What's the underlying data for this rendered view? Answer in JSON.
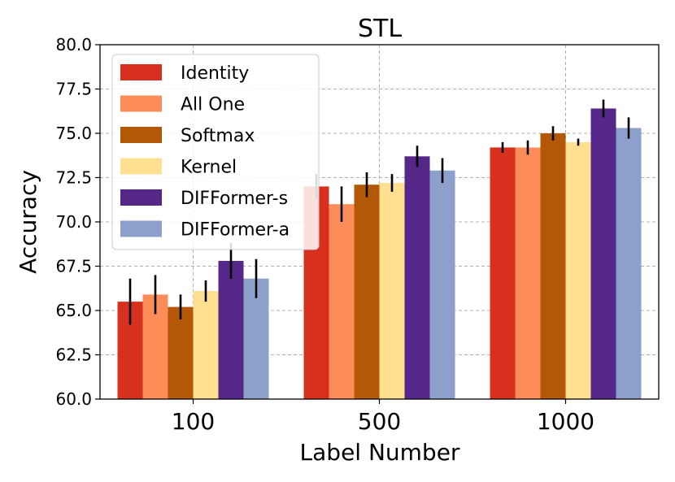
{
  "chart_data": {
    "type": "bar",
    "title": "STL",
    "xlabel": "Label Number",
    "ylabel": "Accuracy",
    "categories": [
      "100",
      "500",
      "1000"
    ],
    "ylim": [
      60.0,
      80.0
    ],
    "yticks": [
      "60.0",
      "62.5",
      "65.0",
      "67.5",
      "70.0",
      "72.5",
      "75.0",
      "77.5",
      "80.0"
    ],
    "grid": true,
    "legend_position": "top-left",
    "series": [
      {
        "name": "Identity",
        "color": "#d7301f",
        "values": [
          65.5,
          72.0,
          74.2
        ],
        "errors": [
          1.3,
          0.7,
          0.3
        ]
      },
      {
        "name": "All One",
        "color": "#fc8d59",
        "values": [
          65.9,
          71.0,
          74.2
        ],
        "errors": [
          1.1,
          1.0,
          0.4
        ]
      },
      {
        "name": "Softmax",
        "color": "#b35806",
        "values": [
          65.2,
          72.1,
          75.0
        ],
        "errors": [
          0.7,
          0.7,
          0.4
        ]
      },
      {
        "name": "Kernel",
        "color": "#fee090",
        "values": [
          66.1,
          72.2,
          74.5
        ],
        "errors": [
          0.6,
          0.5,
          0.2
        ]
      },
      {
        "name": "DIFFormer-s",
        "color": "#542788",
        "values": [
          67.8,
          73.7,
          76.4
        ],
        "errors": [
          1.0,
          0.6,
          0.5
        ]
      },
      {
        "name": "DIFFormer-a",
        "color": "#8da0cb",
        "values": [
          66.8,
          72.9,
          75.3
        ],
        "errors": [
          1.1,
          0.7,
          0.6
        ]
      }
    ],
    "legend_order": [
      "Identity",
      "All One",
      "Softmax",
      "Kernel",
      "DIFFormer-s",
      "DIFFormer-a"
    ]
  }
}
